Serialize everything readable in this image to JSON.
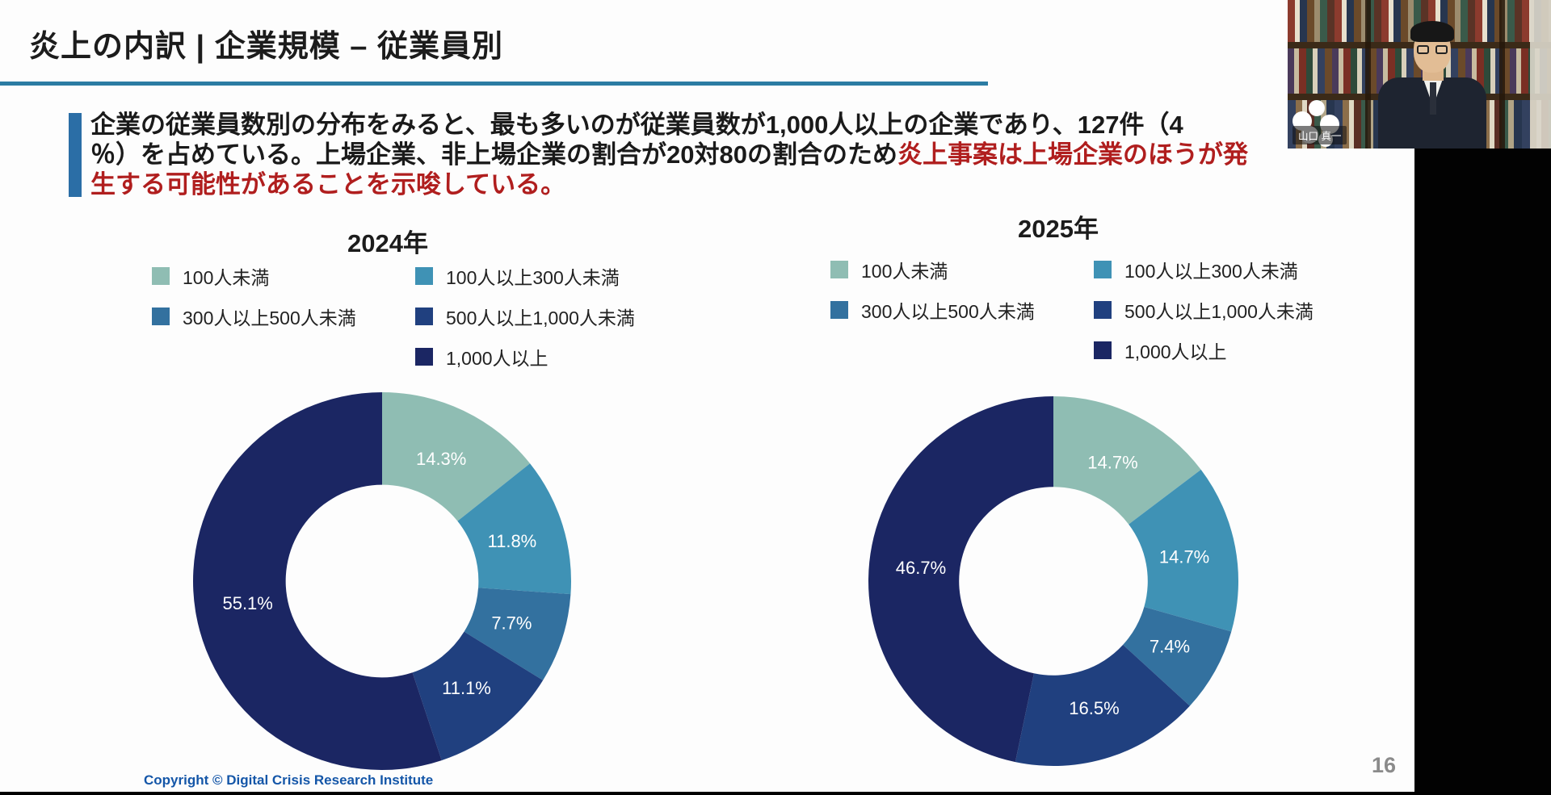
{
  "slide": {
    "title": "炎上の内訳 | 企業規模 – 従業員別",
    "paragraph": {
      "line1": "企業の従業員数別の分布をみると、最も多いのが従業員数が1,000人以上の企業であり、127件（4",
      "line2_black": "％）を占めている。上場企業、非上場企業の割合が20対80の割合のため",
      "line2_red": "炎上事案は上場企業のほうが発",
      "line3_red": "生する可能性があることを示唆している。"
    },
    "footer": {
      "copyright": "Copyright © Digital Crisis Research Institute",
      "page_number": "16"
    }
  },
  "palette": {
    "series": [
      "#8fbdb3",
      "#3f92b5",
      "#33719f",
      "#20407f",
      "#1b2663"
    ],
    "accent_bar": "#2b6ea6",
    "title_rule": "#2b7ca3",
    "emphasis_red": "#b01e1e",
    "copyright_blue": "#1456a8"
  },
  "chart_data": [
    {
      "type": "pie",
      "title": "2024年",
      "categories": [
        "100人未満",
        "100人以上300人未満",
        "300人以上500人未満",
        "500人以上1,000人未満",
        "1,000人以上"
      ],
      "values": [
        14.3,
        11.8,
        7.7,
        11.1,
        55.1
      ],
      "unit": "%",
      "donut_hole_ratio": 0.51,
      "legend_position": "top",
      "start_angle_deg": 0,
      "direction": "clockwise"
    },
    {
      "type": "pie",
      "title": "2025年",
      "categories": [
        "100人未満",
        "100人以上300人未満",
        "300人以上500人未満",
        "500人以上1,000人未満",
        "1,000人以上"
      ],
      "values": [
        14.7,
        14.7,
        7.4,
        16.5,
        46.7
      ],
      "unit": "%",
      "donut_hole_ratio": 0.51,
      "legend_position": "top",
      "start_angle_deg": 0,
      "direction": "clockwise"
    }
  ],
  "webcam": {
    "name_label": "山口 真一"
  }
}
